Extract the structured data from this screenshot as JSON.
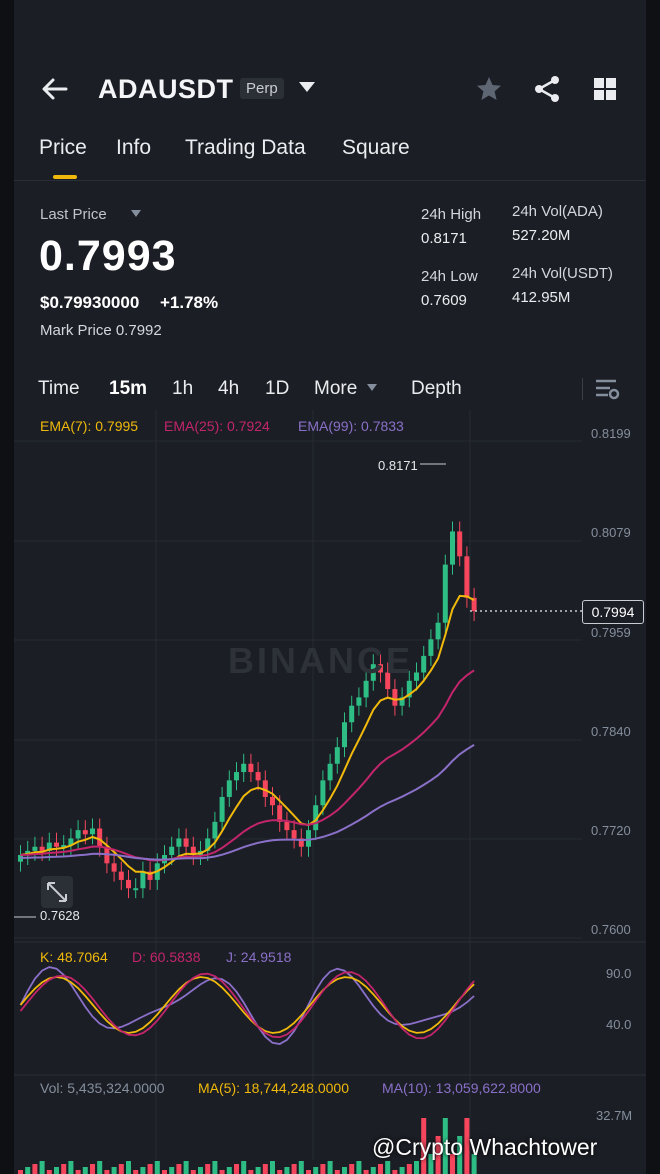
{
  "header": {
    "symbol": "ADAUSDT",
    "contract_type": "Perp"
  },
  "tabs": [
    "Price",
    "Info",
    "Trading Data",
    "Square"
  ],
  "price": {
    "last_price_label": "Last Price",
    "last_price": "0.7993",
    "usd_price": "$0.79930000",
    "change": "+1.78%",
    "mark_price": "Mark Price  0.7992"
  },
  "stats": {
    "high_label": "24h High",
    "high": "0.8171",
    "low_label": "24h Low",
    "low": "0.7609",
    "vol_base_label": "24h Vol(ADA)",
    "vol_base": "527.20M",
    "vol_quote_label": "24h Vol(USDT)",
    "vol_quote": "412.95M"
  },
  "timeframes": {
    "time": "Time",
    "m15": "15m",
    "h1": "1h",
    "h4": "4h",
    "d1": "1D",
    "more": "More",
    "depth": "Depth"
  },
  "indicators": {
    "ema7": "EMA(7): 0.7995",
    "ema25": "EMA(25): 0.7924",
    "ema99": "EMA(99): 0.7833",
    "k": "K: 48.7064",
    "d": "D: 60.5838",
    "j": "J: 24.9518",
    "vol": "Vol: 5,435,324.0000",
    "ma5": "MA(5): 18,744,248.0000",
    "ma10": "MA(10): 13,059,622.8000"
  },
  "axis": {
    "p1": "0.8199",
    "p2": "0.8079",
    "p3": "0.7959",
    "p4": "0.7840",
    "p5": "0.7720",
    "p6": "0.7600",
    "k90": "90.0",
    "k40": "40.0",
    "v": "32.7M"
  },
  "chart_labels": {
    "current": "0.7994",
    "high": "0.8171",
    "low": "0.7628"
  },
  "watermark": "BINANCE",
  "credit": "@Crypto Whachtower",
  "colors": {
    "up": "#2ebd85",
    "down": "#f6465d",
    "accent": "#f0b90b",
    "ema7": "#f0b90b",
    "ema25": "#c2256c",
    "ema99": "#8a70c8"
  },
  "chart_data": {
    "type": "line",
    "price_ylim": [
      0.76,
      0.8199
    ],
    "ema7_last": 0.7995,
    "ema25_last": 0.7924,
    "ema99_last": 0.7833,
    "high": 0.8171,
    "low": 0.7628,
    "last": 0.7994
  }
}
